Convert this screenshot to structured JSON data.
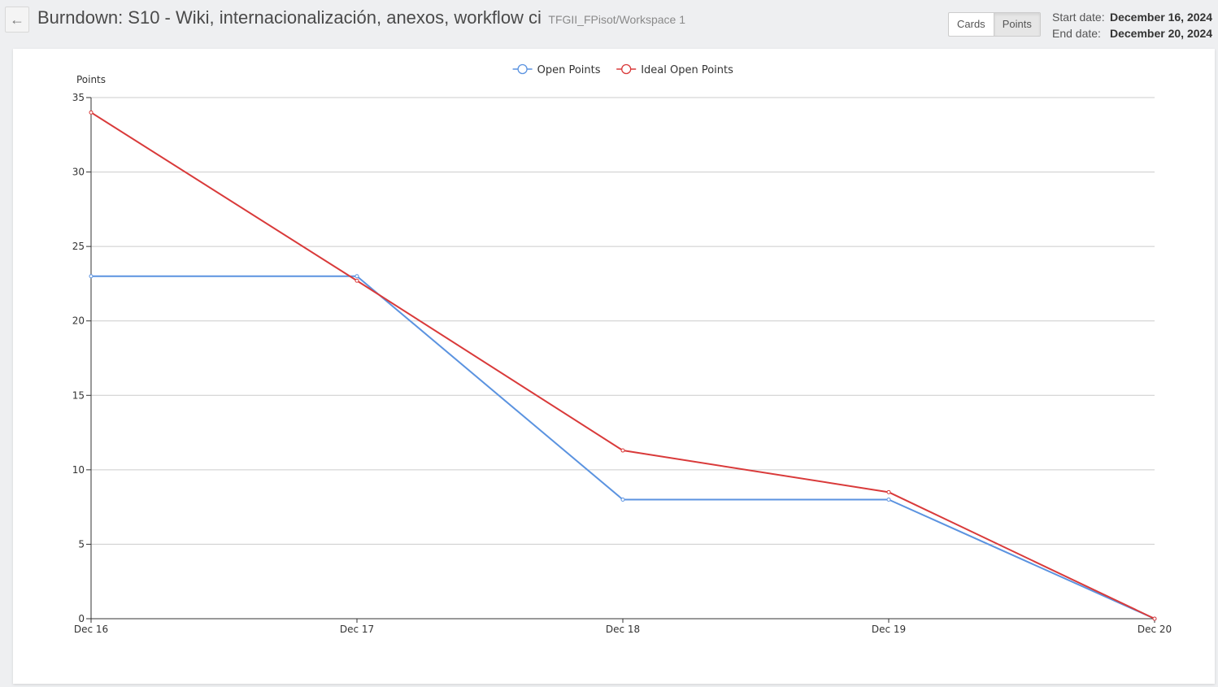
{
  "header": {
    "back_icon": "arrow-left-icon",
    "title": "Burndown: S10 - Wiki, internacionalización, anexos, workflow ci",
    "project": "TFGII_FPisot/Workspace 1",
    "toggle": {
      "cards_label": "Cards",
      "points_label": "Points",
      "active": "Points"
    },
    "start_label": "Start date:",
    "start_value": "December 16, 2024",
    "end_label": "End date:",
    "end_value": "December 20, 2024"
  },
  "chart_data": {
    "type": "line",
    "ylabel": "Points",
    "xlabel": "",
    "categories": [
      "Dec 16",
      "Dec 17",
      "Dec 18",
      "Dec 19",
      "Dec 20"
    ],
    "ylim": [
      0,
      35
    ],
    "yticks": [
      0,
      5,
      10,
      15,
      20,
      25,
      30,
      35
    ],
    "grid": true,
    "legend": "top-center",
    "series": [
      {
        "name": "Open Points",
        "color": "#5b93e0",
        "values": [
          23,
          23,
          8,
          8,
          0
        ]
      },
      {
        "name": "Ideal Open Points",
        "color": "#d93a3a",
        "values": [
          34,
          22.7,
          11.3,
          8.5,
          0
        ]
      }
    ]
  }
}
